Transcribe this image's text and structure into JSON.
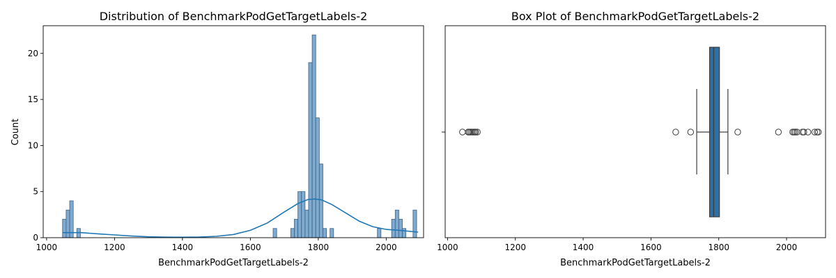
{
  "chart_data": [
    {
      "type": "bar",
      "title": "Distribution of BenchmarkPodGetTargetLabels-2",
      "xlabel": "BenchmarkPodGetTargetLabels-2",
      "ylabel": "Count",
      "xlim": [
        990,
        2110
      ],
      "ylim": [
        0,
        23
      ],
      "xticks": [
        1000,
        1200,
        1400,
        1600,
        1800,
        2000
      ],
      "yticks": [
        0,
        5,
        10,
        15,
        20
      ],
      "bin_width": 10.5,
      "bins": [
        {
          "x": 1047,
          "count": 2
        },
        {
          "x": 1057.5,
          "count": 3
        },
        {
          "x": 1068,
          "count": 4
        },
        {
          "x": 1078.5,
          "count": 0
        },
        {
          "x": 1089,
          "count": 1
        },
        {
          "x": 1667,
          "count": 1
        },
        {
          "x": 1719,
          "count": 1
        },
        {
          "x": 1729.5,
          "count": 2
        },
        {
          "x": 1740,
          "count": 5
        },
        {
          "x": 1750.5,
          "count": 5
        },
        {
          "x": 1761,
          "count": 3
        },
        {
          "x": 1771.5,
          "count": 19
        },
        {
          "x": 1782,
          "count": 22
        },
        {
          "x": 1792.5,
          "count": 13
        },
        {
          "x": 1803,
          "count": 8
        },
        {
          "x": 1813.5,
          "count": 1
        },
        {
          "x": 1824,
          "count": 0
        },
        {
          "x": 1834.5,
          "count": 1
        },
        {
          "x": 1974,
          "count": 1
        },
        {
          "x": 2016,
          "count": 2
        },
        {
          "x": 2026.5,
          "count": 3
        },
        {
          "x": 2037,
          "count": 2
        },
        {
          "x": 2047.5,
          "count": 1
        },
        {
          "x": 2058,
          "count": 0
        },
        {
          "x": 2068.5,
          "count": 0
        },
        {
          "x": 2079,
          "count": 3
        }
      ],
      "kde": {
        "x": [
          1047,
          1100,
          1150,
          1200,
          1250,
          1300,
          1350,
          1400,
          1450,
          1500,
          1550,
          1600,
          1650,
          1700,
          1740,
          1770,
          1790,
          1810,
          1840,
          1880,
          1920,
          1960,
          2000,
          2040,
          2094
        ],
        "y": [
          0.55,
          0.55,
          0.42,
          0.3,
          0.18,
          0.1,
          0.06,
          0.05,
          0.07,
          0.15,
          0.35,
          0.8,
          1.6,
          2.8,
          3.7,
          4.15,
          4.2,
          4.1,
          3.6,
          2.7,
          1.8,
          1.2,
          0.9,
          0.8,
          0.6
        ]
      },
      "colors": {
        "bar": "#7fabd1",
        "bar_edge": "#3d5f80",
        "kde": "#1f77b4"
      }
    },
    {
      "type": "box",
      "title": "Box Plot of BenchmarkPodGetTargetLabels-2",
      "xlabel": "BenchmarkPodGetTargetLabels-2",
      "xlim": [
        993,
        2115
      ],
      "xticks": [
        1000,
        1200,
        1400,
        1600,
        1800,
        2000
      ],
      "whisker_low": 1735,
      "q1": 1773,
      "median": 1785,
      "q3": 1802,
      "whisker_high": 1827,
      "outliers": [
        1044,
        1061,
        1064,
        1068,
        1072,
        1076,
        1080,
        1083,
        1088,
        1673,
        1717,
        1856,
        1976,
        2018,
        2022,
        2026,
        2031,
        2047,
        2051,
        2063,
        2083,
        2090,
        2094
      ],
      "colors": {
        "box": "#2c70a8",
        "line": "#3d3d3d"
      }
    }
  ]
}
